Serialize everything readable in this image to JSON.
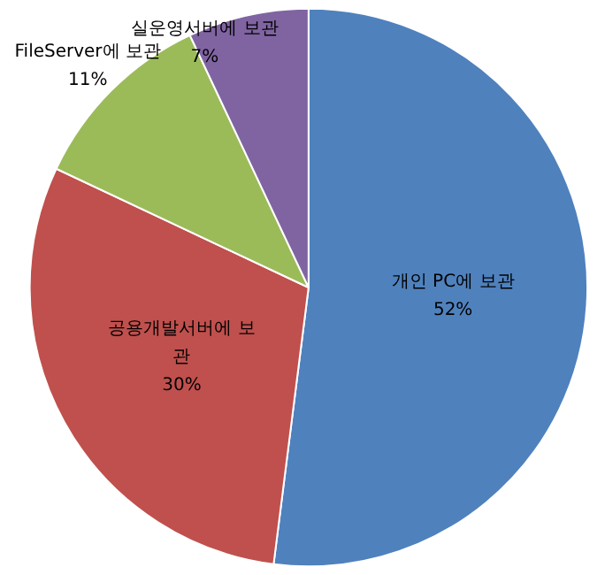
{
  "chart_data": {
    "type": "pie",
    "categories": [
      "개인 PC에 보관",
      "공용개발서버에 보관",
      "FileServer에 보관",
      "실운영서버에 보관"
    ],
    "values": [
      52,
      30,
      11,
      7
    ],
    "colors": [
      "#4f81bd",
      "#c0504d",
      "#9bbb59",
      "#8064a2"
    ],
    "value_labels": [
      "52%",
      "30%",
      "11%",
      "7%"
    ]
  }
}
